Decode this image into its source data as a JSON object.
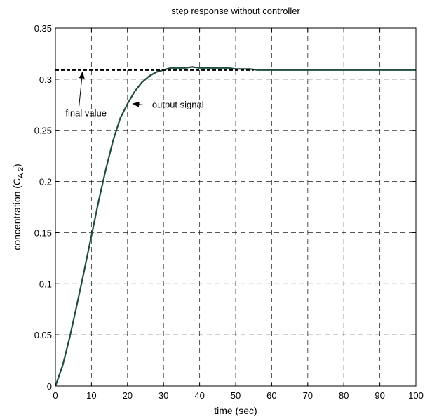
{
  "chart_data": {
    "type": "line",
    "title": "step response without controller",
    "xlabel": "time (sec)",
    "ylabel": {
      "main": "concentration (C",
      "subscript": "A 2",
      "close": ")"
    },
    "xlim": [
      0,
      100
    ],
    "ylim": [
      0,
      0.35
    ],
    "xticks": [
      "0",
      "10",
      "20",
      "30",
      "40",
      "50",
      "60",
      "70",
      "80",
      "90",
      "100"
    ],
    "yticks": [
      "0",
      "0.05",
      "0.1",
      "0.15",
      "0.2",
      "0.25",
      "0.3",
      "0.35"
    ],
    "grid": true,
    "series": [
      {
        "color": "#1f4f3a",
        "style": "solid",
        "x": [
          0,
          2,
          4,
          6,
          8,
          10,
          12,
          14,
          16,
          18,
          20,
          22,
          24,
          26,
          28,
          30,
          32,
          34,
          36,
          38,
          40,
          42,
          44,
          46,
          48,
          50,
          52,
          54,
          56,
          60,
          70,
          80,
          90,
          100
        ],
        "y": [
          0,
          0.02,
          0.048,
          0.08,
          0.113,
          0.147,
          0.181,
          0.212,
          0.24,
          0.262,
          0.276,
          0.288,
          0.297,
          0.303,
          0.307,
          0.309,
          0.311,
          0.311,
          0.311,
          0.312,
          0.311,
          0.311,
          0.311,
          0.311,
          0.311,
          0.31,
          0.31,
          0.31,
          0.309,
          0.309,
          0.309,
          0.309,
          0.309,
          0.309
        ]
      },
      {
        "color": "#000000",
        "style": "dashed",
        "x": [
          0,
          55
        ],
        "y": [
          0.309,
          0.309
        ]
      }
    ],
    "annotations": [
      {
        "text": "final value",
        "text_xy": [
          8.5,
          0.264
        ],
        "arrow_to": [
          7.5,
          0.307
        ]
      },
      {
        "text": "output signal",
        "text_xy": [
          34,
          0.272
        ],
        "arrow_to": [
          21.5,
          0.276
        ]
      }
    ]
  }
}
